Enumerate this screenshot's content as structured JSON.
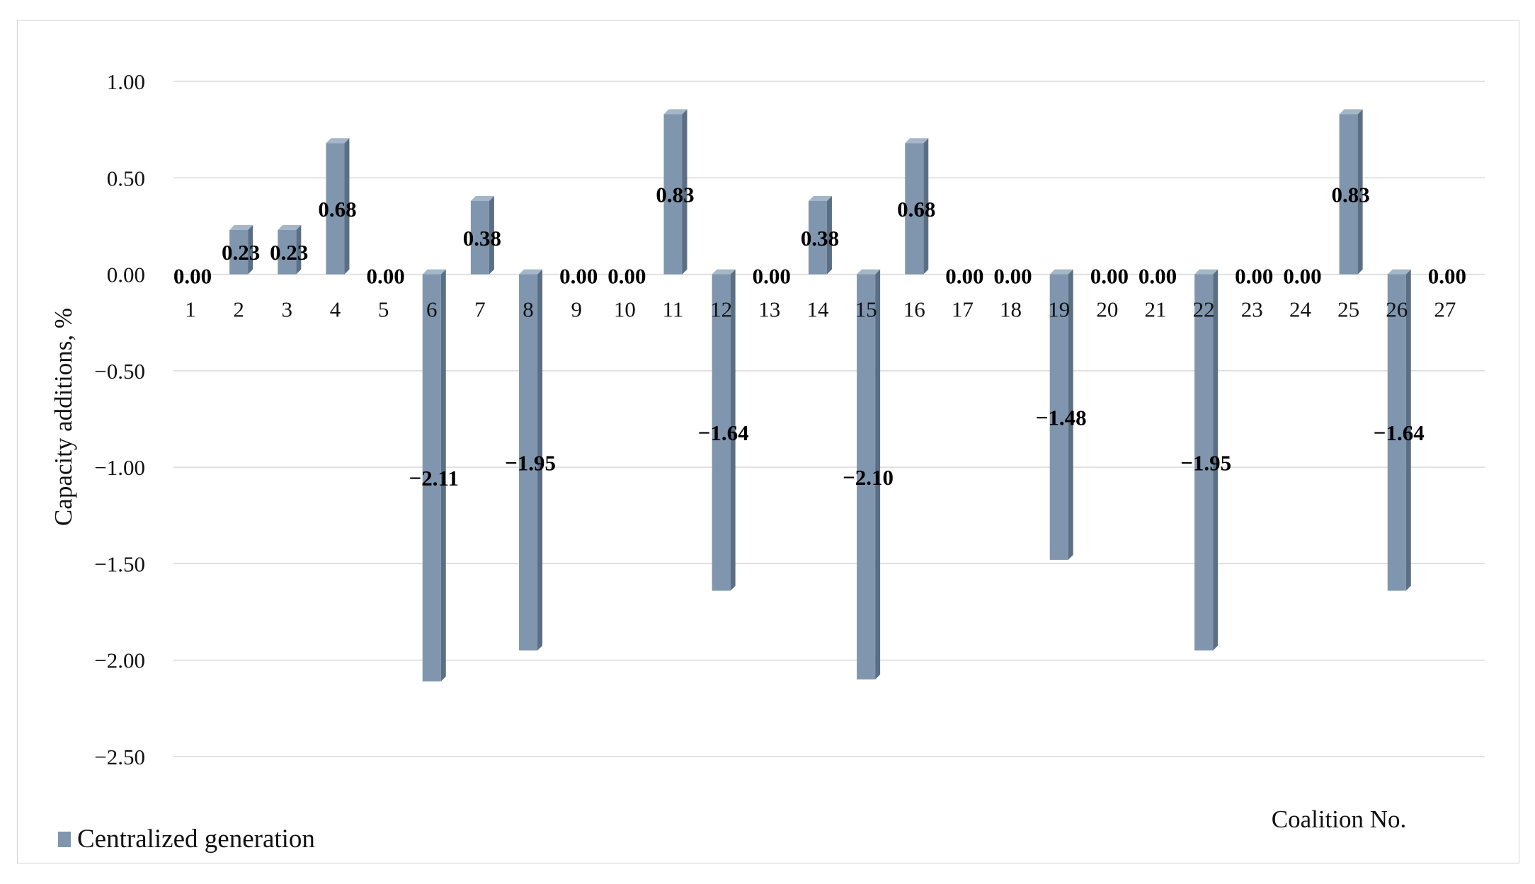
{
  "chart_data": {
    "type": "bar",
    "categories": [
      "1",
      "2",
      "3",
      "4",
      "5",
      "6",
      "7",
      "8",
      "9",
      "10",
      "11",
      "12",
      "13",
      "14",
      "15",
      "16",
      "17",
      "18",
      "19",
      "20",
      "21",
      "22",
      "23",
      "24",
      "25",
      "26",
      "27"
    ],
    "series": [
      {
        "name": "Centralized generation",
        "values": [
          0.0,
          0.23,
          0.23,
          0.68,
          0.0,
          -2.11,
          0.38,
          -1.95,
          0.0,
          0.0,
          0.83,
          -1.64,
          0.0,
          0.38,
          -2.1,
          0.68,
          0.0,
          0.0,
          -1.48,
          0.0,
          0.0,
          -1.95,
          0.0,
          0.0,
          0.83,
          -1.64,
          0.0
        ],
        "value_labels": [
          "0.00",
          "0.23",
          "0.23",
          "0.68",
          "0.00",
          "−2.11",
          "0.38",
          "−1.95",
          "0.00",
          "0.00",
          "0.83",
          "−1.64",
          "0.00",
          "0.38",
          "−2.10",
          "0.68",
          "0.00",
          "0.00",
          "−1.48",
          "0.00",
          "0.00",
          "−1.95",
          "0.00",
          "0.00",
          "0.83",
          "−1.64",
          "0.00"
        ],
        "color": "#7f96ae"
      }
    ],
    "ylim": [
      -2.5,
      1.0
    ],
    "yticks": [
      1.0,
      0.5,
      0.0,
      -0.5,
      -1.0,
      -1.5,
      -2.0,
      -2.5
    ],
    "ytick_labels": [
      "1.00",
      "0.50",
      "0.00",
      "−0.50",
      "−1.00",
      "−1.50",
      "−2.00",
      "−2.50"
    ],
    "ylabel": "Capacity additions, %",
    "xlabel": "Coalition No.",
    "title": "",
    "grid": true,
    "legend": "bottom-left",
    "bar_style": "3d-column"
  },
  "colors": {
    "bar_front": "#7f96ae",
    "bar_side": "#5b6f84",
    "bar_top": "#a4b6c8",
    "grid": "#d9d9d9"
  }
}
